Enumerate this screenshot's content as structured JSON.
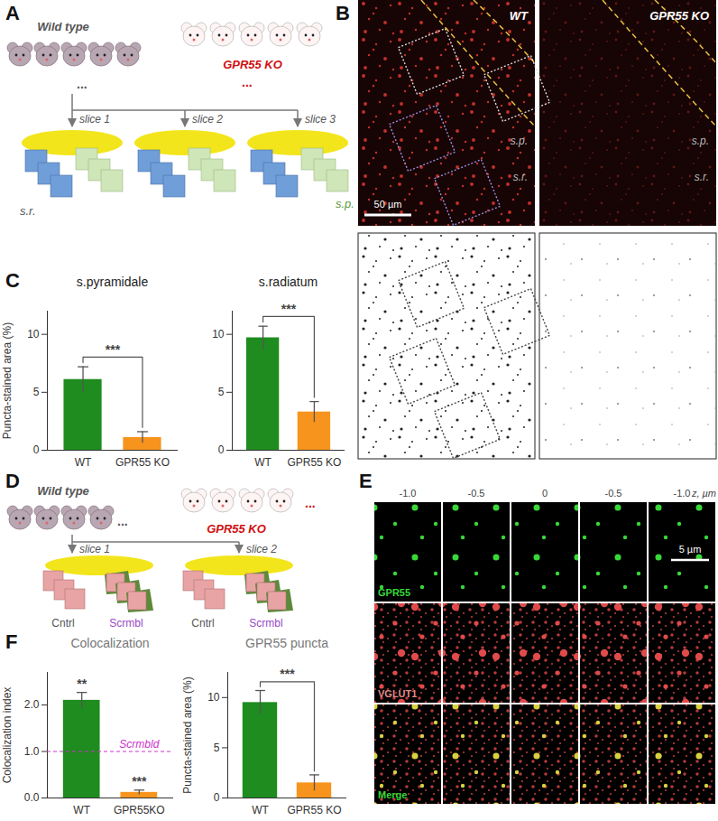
{
  "panels": {
    "A": {
      "label": "A",
      "groups": [
        "Wild type",
        "GPR55 KO"
      ],
      "ellipsis": "...",
      "slices": [
        "slice 1",
        "slice 2",
        "slice 3"
      ],
      "regions": [
        "s.r.",
        "s.p."
      ]
    },
    "B": {
      "label": "B",
      "images": [
        "WT",
        "GPR55 KO"
      ],
      "regions": [
        "s.p.",
        "s.r."
      ],
      "scale_bar": "50 µm"
    },
    "C": {
      "label": "C"
    },
    "D": {
      "label": "D",
      "groups": [
        "Wild type",
        "GPR55 KO"
      ],
      "ellipsis": "...",
      "slices": [
        "slice 1",
        "slice 2"
      ],
      "conditions": [
        "Cntrl",
        "Scrmbl"
      ]
    },
    "E": {
      "label": "E",
      "z_label": "z, µm",
      "z_positions": [
        "-1.0",
        "-0.5",
        "0",
        "-0.5",
        "-1.0"
      ],
      "channels": [
        "GPR55",
        "VGLUT1",
        "Merge"
      ],
      "scale_bar": "5 µm"
    },
    "F": {
      "label": "F"
    }
  },
  "chart_data": [
    {
      "panel": "C",
      "type": "bar",
      "title": "s.pyramidale",
      "y_label": "Puncta-stained area (%)",
      "categories": [
        "WT",
        "GPR55 KO"
      ],
      "values": [
        6.1,
        1.1
      ],
      "errors": [
        1.1,
        0.5
      ],
      "colors": [
        "#1e8c1e",
        "#f7941d"
      ],
      "ylim": [
        0,
        12
      ],
      "yticks": [
        0,
        5,
        10
      ],
      "significance": "***"
    },
    {
      "panel": "C",
      "type": "bar",
      "title": "s.radiatum",
      "categories": [
        "WT",
        "GPR55 KO"
      ],
      "values": [
        9.7,
        3.3
      ],
      "errors": [
        1.0,
        0.9
      ],
      "colors": [
        "#1e8c1e",
        "#f7941d"
      ],
      "ylim": [
        0,
        12
      ],
      "yticks": [
        0,
        5,
        10
      ],
      "significance": "***"
    },
    {
      "panel": "F",
      "type": "bar",
      "title": "Colocalization",
      "y_label": "Colocalization index",
      "categories": [
        "WT",
        "GPR55KO"
      ],
      "values": [
        2.1,
        0.12
      ],
      "errors": [
        0.17,
        0.05
      ],
      "colors": [
        "#1e8c1e",
        "#f7941d"
      ],
      "ylim": [
        0,
        2.7
      ],
      "yticks": [
        0,
        1,
        2
      ],
      "annotations": [
        "**",
        "***"
      ],
      "reference": {
        "value": 1,
        "label": "Scrmbld",
        "color": "#cc33cc",
        "line_style": "dashed"
      }
    },
    {
      "panel": "F",
      "type": "bar",
      "title": "GPR55 puncta",
      "y_label": "Puncta-stained area (%)",
      "categories": [
        "WT",
        "GPR55 KO"
      ],
      "values": [
        9.5,
        1.5
      ],
      "errors": [
        1.2,
        0.8
      ],
      "colors": [
        "#1e8c1e",
        "#f7941d"
      ],
      "ylim": [
        0,
        12.5
      ],
      "yticks": [
        0,
        5,
        10
      ],
      "significance": "***"
    }
  ]
}
